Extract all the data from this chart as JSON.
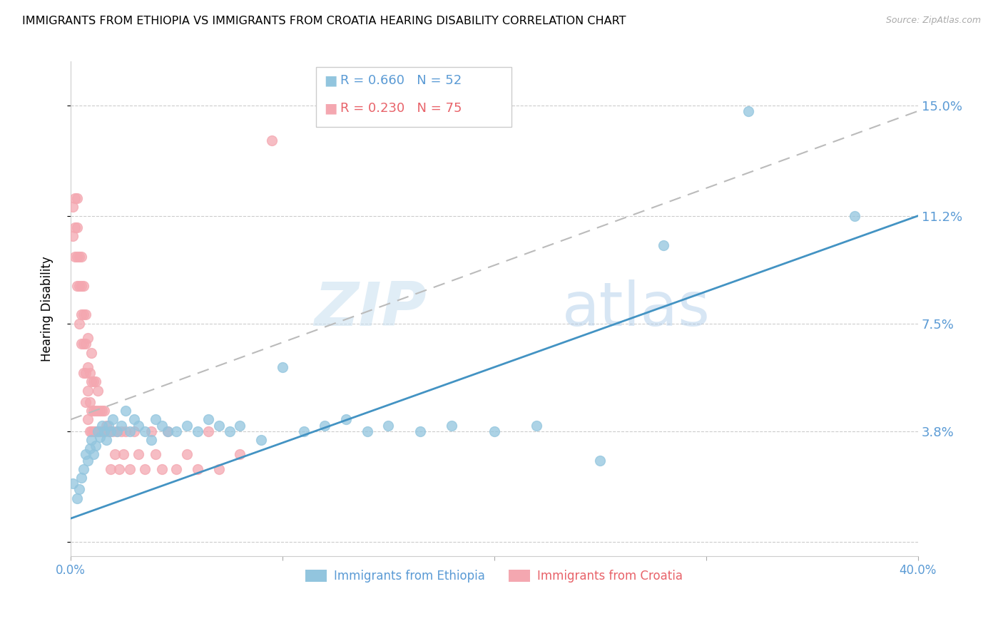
{
  "title": "IMMIGRANTS FROM ETHIOPIA VS IMMIGRANTS FROM CROATIA HEARING DISABILITY CORRELATION CHART",
  "source": "Source: ZipAtlas.com",
  "ylabel": "Hearing Disability",
  "yticks": [
    0.0,
    0.038,
    0.075,
    0.112,
    0.15
  ],
  "ytick_labels": [
    "",
    "3.8%",
    "7.5%",
    "11.2%",
    "15.0%"
  ],
  "xlim": [
    0.0,
    0.4
  ],
  "ylim": [
    -0.005,
    0.165
  ],
  "legend1_r": "0.660",
  "legend1_n": "52",
  "legend2_r": "0.230",
  "legend2_n": "75",
  "color_ethiopia": "#92c5de",
  "color_croatia": "#f4a7b0",
  "color_line_ethiopia": "#4393c3",
  "color_line_croatia": "#bbbbbb",
  "watermark_zip": "ZIP",
  "watermark_atlas": "atlas",
  "ethiopia_x": [
    0.001,
    0.003,
    0.004,
    0.005,
    0.006,
    0.007,
    0.008,
    0.009,
    0.01,
    0.011,
    0.012,
    0.013,
    0.014,
    0.015,
    0.016,
    0.017,
    0.018,
    0.019,
    0.02,
    0.022,
    0.024,
    0.026,
    0.028,
    0.03,
    0.032,
    0.035,
    0.038,
    0.04,
    0.043,
    0.046,
    0.05,
    0.055,
    0.06,
    0.065,
    0.07,
    0.075,
    0.08,
    0.09,
    0.1,
    0.11,
    0.12,
    0.13,
    0.14,
    0.15,
    0.165,
    0.18,
    0.2,
    0.22,
    0.25,
    0.28,
    0.32,
    0.37
  ],
  "ethiopia_y": [
    0.02,
    0.015,
    0.018,
    0.022,
    0.025,
    0.03,
    0.028,
    0.032,
    0.035,
    0.03,
    0.033,
    0.038,
    0.036,
    0.04,
    0.038,
    0.035,
    0.04,
    0.038,
    0.042,
    0.038,
    0.04,
    0.045,
    0.038,
    0.042,
    0.04,
    0.038,
    0.035,
    0.042,
    0.04,
    0.038,
    0.038,
    0.04,
    0.038,
    0.042,
    0.04,
    0.038,
    0.04,
    0.035,
    0.06,
    0.038,
    0.04,
    0.042,
    0.038,
    0.04,
    0.038,
    0.04,
    0.038,
    0.04,
    0.028,
    0.102,
    0.148,
    0.112
  ],
  "croatia_x": [
    0.001,
    0.001,
    0.002,
    0.002,
    0.002,
    0.003,
    0.003,
    0.003,
    0.003,
    0.004,
    0.004,
    0.004,
    0.005,
    0.005,
    0.005,
    0.005,
    0.006,
    0.006,
    0.006,
    0.006,
    0.007,
    0.007,
    0.007,
    0.007,
    0.008,
    0.008,
    0.008,
    0.008,
    0.009,
    0.009,
    0.009,
    0.01,
    0.01,
    0.01,
    0.01,
    0.011,
    0.011,
    0.011,
    0.012,
    0.012,
    0.012,
    0.013,
    0.013,
    0.013,
    0.014,
    0.014,
    0.015,
    0.015,
    0.016,
    0.016,
    0.017,
    0.018,
    0.019,
    0.02,
    0.021,
    0.022,
    0.023,
    0.024,
    0.025,
    0.026,
    0.028,
    0.03,
    0.032,
    0.035,
    0.038,
    0.04,
    0.043,
    0.046,
    0.05,
    0.055,
    0.06,
    0.065,
    0.07,
    0.08,
    0.095
  ],
  "croatia_y": [
    0.105,
    0.115,
    0.098,
    0.108,
    0.118,
    0.088,
    0.098,
    0.108,
    0.118,
    0.075,
    0.088,
    0.098,
    0.068,
    0.078,
    0.088,
    0.098,
    0.058,
    0.068,
    0.078,
    0.088,
    0.048,
    0.058,
    0.068,
    0.078,
    0.042,
    0.052,
    0.06,
    0.07,
    0.038,
    0.048,
    0.058,
    0.038,
    0.045,
    0.055,
    0.065,
    0.038,
    0.045,
    0.055,
    0.038,
    0.045,
    0.055,
    0.038,
    0.045,
    0.052,
    0.038,
    0.045,
    0.038,
    0.045,
    0.038,
    0.045,
    0.04,
    0.038,
    0.025,
    0.038,
    0.03,
    0.038,
    0.025,
    0.038,
    0.03,
    0.038,
    0.025,
    0.038,
    0.03,
    0.025,
    0.038,
    0.03,
    0.025,
    0.038,
    0.025,
    0.03,
    0.025,
    0.038,
    0.025,
    0.03,
    0.138
  ],
  "ethiopia_trend_x": [
    0.0,
    0.4
  ],
  "ethiopia_trend_y": [
    0.008,
    0.112
  ],
  "croatia_trend_x": [
    0.0,
    0.4
  ],
  "croatia_trend_y": [
    0.042,
    0.148
  ],
  "grid_color": "#cccccc",
  "title_fontsize": 11.5,
  "axis_label_color": "#5b9bd5",
  "legend_label_color_ethiopia": "#5b9bd5",
  "legend_label_color_croatia": "#e8636a",
  "bottom_legend_color_ethiopia": "#5b9bd5",
  "bottom_legend_color_croatia": "#e8636a"
}
